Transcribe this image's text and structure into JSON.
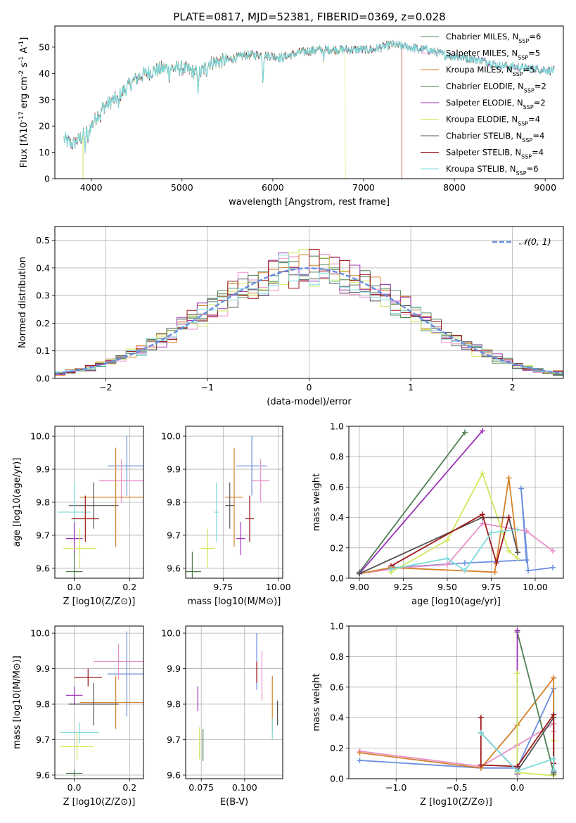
{
  "figure_title": "PLATE=0817, MJD=52381, FIBERID=0369, z=0.028",
  "colors": {
    "c0": "#5a8a5e",
    "c1": "#e891c8",
    "c2": "#d4802a",
    "c3": "#4f7f52",
    "c4": "#9a33b8",
    "c5": "#cfe85a",
    "c6": "#555555",
    "c7": "#a01818",
    "c8": "#7fdada",
    "c9": "#6a8fdf",
    "grid": "#b0b0b0"
  },
  "chart_data": [
    {
      "id": "spectrum",
      "type": "line",
      "xlabel": "wavelength [Angstrom, rest frame]",
      "ylabel": "Flux [f_λ10^-17 erg cm^-2 s^-1 A^-1]",
      "xlim": [
        3600,
        9200
      ],
      "ylim": [
        0,
        58
      ],
      "xticks": [
        4000,
        5000,
        6000,
        7000,
        8000,
        9000
      ],
      "yticks": [
        0,
        10,
        20,
        30,
        40,
        50
      ],
      "grid": false,
      "legend_position": "top-right",
      "legend": [
        "Chabrier MILES, N_SSP=6",
        "Salpeter MILES, N_SSP=5",
        "Kroupa MILES, N_SSP=5",
        "Chabrier ELODIE, N_SSP=2",
        "Salpeter ELODIE, N_SSP=2",
        "Kroupa ELODIE, N_SSP=4",
        "Chabrier STELIB, N_SSP=4",
        "Salpeter STELIB, N_SSP=4",
        "Kroupa STELIB, N_SSP=6"
      ],
      "continuum": [
        [
          3700,
          15
        ],
        [
          3800,
          13
        ],
        [
          3900,
          16
        ],
        [
          4000,
          20
        ],
        [
          4100,
          26
        ],
        [
          4200,
          29
        ],
        [
          4300,
          31
        ],
        [
          4400,
          35
        ],
        [
          4500,
          38
        ],
        [
          4600,
          40
        ],
        [
          4700,
          41
        ],
        [
          4800,
          42
        ],
        [
          4900,
          42
        ],
        [
          5000,
          42
        ],
        [
          5100,
          41
        ],
        [
          5200,
          40
        ],
        [
          5300,
          44
        ],
        [
          5500,
          45
        ],
        [
          5700,
          47
        ],
        [
          5900,
          47
        ],
        [
          6100,
          46
        ],
        [
          6300,
          48
        ],
        [
          6500,
          49
        ],
        [
          6700,
          49
        ],
        [
          6900,
          49
        ],
        [
          7100,
          49
        ],
        [
          7300,
          51
        ],
        [
          7500,
          50
        ],
        [
          7700,
          49
        ],
        [
          7900,
          47
        ],
        [
          8100,
          46
        ],
        [
          8300,
          45
        ],
        [
          8500,
          43
        ],
        [
          8800,
          42
        ],
        [
          9100,
          41
        ]
      ]
    },
    {
      "id": "residuals",
      "type": "histogram",
      "xlabel": "(data-model)/error",
      "ylabel": "Normed distribution",
      "xlim": [
        -2.5,
        2.5
      ],
      "ylim": [
        0,
        0.55
      ],
      "xticks": [
        -2,
        -1,
        0,
        1,
        2
      ],
      "yticks": [
        0.0,
        0.1,
        0.2,
        0.3,
        0.4,
        0.5
      ],
      "grid": true,
      "legend_position": "top-right",
      "legend": [
        "N(0,1)"
      ],
      "bin_width": 0.1
    },
    {
      "id": "age_vs_Z",
      "type": "scatter",
      "xlabel": "Z [log10(Z/Z⊙)]",
      "ylabel": "age  [log10(age/yr)]",
      "xlim": [
        -0.07,
        0.25
      ],
      "ylim": [
        9.57,
        10.03
      ],
      "xticks": [
        0.0,
        0.2
      ],
      "yticks": [
        9.6,
        9.7,
        9.8,
        9.9,
        10.0
      ],
      "grid": true,
      "points": [
        {
          "c": "c9",
          "x": 0.19,
          "y": 9.91,
          "xe": 0.07,
          "ye": 0.09
        },
        {
          "c": "c1",
          "x": 0.17,
          "y": 9.865,
          "xe": 0.08,
          "ye": 0.065
        },
        {
          "c": "c2",
          "x": 0.15,
          "y": 9.815,
          "xe": 0.13,
          "ye": 0.15
        },
        {
          "c": "c6",
          "x": 0.07,
          "y": 9.79,
          "xe": 0.09,
          "ye": 0.07
        },
        {
          "c": "c8",
          "x": 0.0,
          "y": 9.77,
          "xe": 0.06,
          "ye": 0.09
        },
        {
          "c": "c7",
          "x": 0.04,
          "y": 9.75,
          "xe": 0.05,
          "ye": 0.07
        },
        {
          "c": "c4",
          "x": 0.0,
          "y": 9.69,
          "xe": 0.03,
          "ye": 0.05
        },
        {
          "c": "c5",
          "x": 0.02,
          "y": 9.66,
          "xe": 0.06,
          "ye": 0.06
        },
        {
          "c": "c3",
          "x": 0.0,
          "y": 9.59,
          "xe": 0.03,
          "ye": 0.06
        }
      ]
    },
    {
      "id": "age_vs_mass",
      "type": "scatter",
      "xlabel": "mass [log10(M/M⊙)]",
      "ylabel": "",
      "xlim": [
        9.58,
        10.02
      ],
      "ylim": [
        9.57,
        10.03
      ],
      "xticks": [
        9.75,
        10.0
      ],
      "yticks": [
        9.6,
        9.7,
        9.8,
        9.9,
        10.0
      ],
      "grid": true,
      "points": [
        {
          "c": "c9",
          "x": 9.88,
          "y": 9.91,
          "xe": 0.07,
          "ye": 0.09
        },
        {
          "c": "c1",
          "x": 9.92,
          "y": 9.865,
          "xe": 0.04,
          "ye": 0.065
        },
        {
          "c": "c2",
          "x": 9.8,
          "y": 9.815,
          "xe": 0.04,
          "ye": 0.15
        },
        {
          "c": "c6",
          "x": 9.78,
          "y": 9.79,
          "xe": 0.02,
          "ye": 0.07
        },
        {
          "c": "c8",
          "x": 9.72,
          "y": 9.77,
          "xe": 0.01,
          "ye": 0.09
        },
        {
          "c": "c7",
          "x": 9.87,
          "y": 9.75,
          "xe": 0.02,
          "ye": 0.07
        },
        {
          "c": "c4",
          "x": 9.83,
          "y": 9.69,
          "xe": 0.02,
          "ye": 0.05
        },
        {
          "c": "c5",
          "x": 9.68,
          "y": 9.66,
          "xe": 0.03,
          "ye": 0.06
        },
        {
          "c": "c3",
          "x": 9.61,
          "y": 9.59,
          "xe": 0.04,
          "ye": 0.06
        }
      ]
    },
    {
      "id": "weight_vs_age",
      "type": "line",
      "xlabel": "age  [log10(age/yr)]",
      "ylabel": "mass weight",
      "xlim": [
        8.94,
        10.16
      ],
      "ylim": [
        0,
        1.0
      ],
      "xticks": [
        9.0,
        9.25,
        9.5,
        9.75,
        10.0
      ],
      "yticks": [
        0.0,
        0.2,
        0.4,
        0.6,
        0.8,
        1.0
      ],
      "grid": true,
      "series": [
        {
          "c": "c9",
          "x": [
            9.0,
            9.2,
            9.6,
            9.95,
            9.92,
            9.96,
            10.1
          ],
          "y": [
            0.03,
            0.07,
            0.1,
            0.12,
            0.59,
            0.05,
            0.07
          ]
        },
        {
          "c": "c1",
          "x": [
            9.0,
            9.25,
            9.5,
            9.7,
            9.95,
            10.1
          ],
          "y": [
            0.03,
            0.07,
            0.09,
            0.36,
            0.31,
            0.18
          ]
        },
        {
          "c": "c2",
          "x": [
            9.0,
            9.18,
            9.77,
            9.85,
            9.9
          ],
          "y": [
            0.03,
            0.07,
            0.04,
            0.66,
            0.17
          ]
        },
        {
          "c": "c3",
          "x": [
            9.0,
            9.6
          ],
          "y": [
            0.04,
            0.96
          ]
        },
        {
          "c": "c4",
          "x": [
            9.0,
            9.7
          ],
          "y": [
            0.03,
            0.97
          ]
        },
        {
          "c": "c5",
          "x": [
            9.18,
            9.5,
            9.7,
            9.85,
            9.9
          ],
          "y": [
            0.04,
            0.25,
            0.69,
            0.18,
            0.13
          ]
        },
        {
          "c": "c6",
          "x": [
            9.0,
            9.7,
            9.85,
            9.9
          ],
          "y": [
            0.03,
            0.4,
            0.4,
            0.17
          ]
        },
        {
          "c": "c7",
          "x": [
            9.18,
            9.7,
            9.78,
            9.85
          ],
          "y": [
            0.08,
            0.42,
            0.1,
            0.4
          ]
        },
        {
          "c": "c8",
          "x": [
            9.18,
            9.5,
            9.6,
            9.75,
            9.9
          ],
          "y": [
            0.06,
            0.13,
            0.05,
            0.3,
            0.32
          ]
        }
      ]
    },
    {
      "id": "mass_vs_Z",
      "type": "scatter",
      "xlabel": "Z [log10(Z/Z⊙)]",
      "ylabel": "mass [log10(M/M⊙)]",
      "xlim": [
        -0.07,
        0.25
      ],
      "ylim": [
        9.59,
        10.02
      ],
      "xticks": [
        0.0,
        0.2
      ],
      "yticks": [
        9.6,
        9.7,
        9.8,
        9.9,
        10.0
      ],
      "grid": true,
      "points": [
        {
          "c": "c9",
          "x": 0.19,
          "y": 9.885,
          "xe": 0.07,
          "ye": 0.12
        },
        {
          "c": "c1",
          "x": 0.16,
          "y": 9.92,
          "xe": 0.09,
          "ye": 0.05
        },
        {
          "c": "c2",
          "x": 0.15,
          "y": 9.805,
          "xe": 0.13,
          "ye": 0.075
        },
        {
          "c": "c6",
          "x": 0.07,
          "y": 9.8,
          "xe": 0.09,
          "ye": 0.06
        },
        {
          "c": "c8",
          "x": 0.02,
          "y": 9.72,
          "xe": 0.07,
          "ye": 0.03
        },
        {
          "c": "c7",
          "x": 0.05,
          "y": 9.875,
          "xe": 0.05,
          "ye": 0.025
        },
        {
          "c": "c4",
          "x": 0.0,
          "y": 9.825,
          "xe": 0.03,
          "ye": 0.025
        },
        {
          "c": "c5",
          "x": 0.01,
          "y": 9.68,
          "xe": 0.06,
          "ye": 0.04
        },
        {
          "c": "c3",
          "x": 0.0,
          "y": 9.605,
          "xe": 0.03,
          "ye": 0.01
        }
      ]
    },
    {
      "id": "mass_vs_ebv",
      "type": "scatter",
      "xlabel": "E(B-V)",
      "ylabel": "",
      "xlim": [
        0.066,
        0.122
      ],
      "ylim": [
        9.59,
        10.02
      ],
      "xticks": [
        0.075,
        0.1
      ],
      "yticks": [
        9.6,
        9.7,
        9.8,
        9.9,
        10.0
      ],
      "grid": true,
      "points": [
        {
          "c": "c9",
          "x": 0.107,
          "y": 9.92,
          "ye": 0.08
        },
        {
          "c": "c1",
          "x": 0.11,
          "y": 9.88,
          "ye": 0.07
        },
        {
          "c": "c2",
          "x": 0.116,
          "y": 9.8,
          "ye": 0.08
        },
        {
          "c": "c6",
          "x": 0.119,
          "y": 9.775,
          "ye": 0.035
        },
        {
          "c": "c8",
          "x": 0.116,
          "y": 9.73,
          "ye": 0.03
        },
        {
          "c": "c7",
          "x": 0.107,
          "y": 9.89,
          "ye": 0.03
        },
        {
          "c": "c4",
          "x": 0.073,
          "y": 9.815,
          "ye": 0.035
        },
        {
          "c": "c5",
          "x": 0.074,
          "y": 9.69,
          "ye": 0.045
        },
        {
          "c": "c3",
          "x": 0.076,
          "y": 9.685,
          "ye": 0.045
        }
      ]
    },
    {
      "id": "weight_vs_Z",
      "type": "line",
      "xlabel": "Z [log10(Z/Z⊙)]",
      "ylabel": "mass weight",
      "xlim": [
        -1.39,
        0.38
      ],
      "ylim": [
        0,
        1.0
      ],
      "xticks": [
        -1.0,
        -0.5,
        0.0
      ],
      "yticks": [
        0.0,
        0.2,
        0.4,
        0.6,
        0.8,
        1.0
      ],
      "grid": true,
      "series": [
        {
          "c": "c9",
          "x": [
            -1.3,
            -0.3,
            0.0,
            0.3,
            0.3
          ],
          "y": [
            0.12,
            0.07,
            0.07,
            0.59,
            0.05
          ]
        },
        {
          "c": "c1",
          "x": [
            -1.3,
            -0.3,
            0.0,
            0.3,
            0.3
          ],
          "y": [
            0.18,
            0.08,
            0.22,
            0.36,
            0.31
          ]
        },
        {
          "c": "c2",
          "x": [
            -1.3,
            -0.3,
            0.0,
            0.3,
            0.3
          ],
          "y": [
            0.17,
            0.07,
            0.35,
            0.66,
            0.04
          ]
        },
        {
          "c": "c3",
          "x": [
            0.0,
            0.3
          ],
          "y": [
            0.96,
            0.04
          ]
        },
        {
          "c": "c4",
          "x": [
            0.0,
            0.0
          ],
          "y": [
            0.03,
            0.97
          ]
        },
        {
          "c": "c5",
          "x": [
            0.0,
            0.0,
            0.3,
            0.3
          ],
          "y": [
            0.69,
            0.04,
            0.02,
            0.25
          ]
        },
        {
          "c": "c6",
          "x": [
            -0.3,
            0.0,
            0.3,
            0.3
          ],
          "y": [
            0.3,
            0.05,
            0.4,
            0.03
          ]
        },
        {
          "c": "c7",
          "x": [
            -0.3,
            -0.3,
            0.0,
            0.3,
            0.3
          ],
          "y": [
            0.4,
            0.09,
            0.08,
            0.42,
            0.1
          ]
        },
        {
          "c": "c8",
          "x": [
            -0.3,
            0.0,
            0.3,
            0.3
          ],
          "y": [
            0.3,
            0.05,
            0.13,
            0.06
          ]
        }
      ]
    }
  ]
}
